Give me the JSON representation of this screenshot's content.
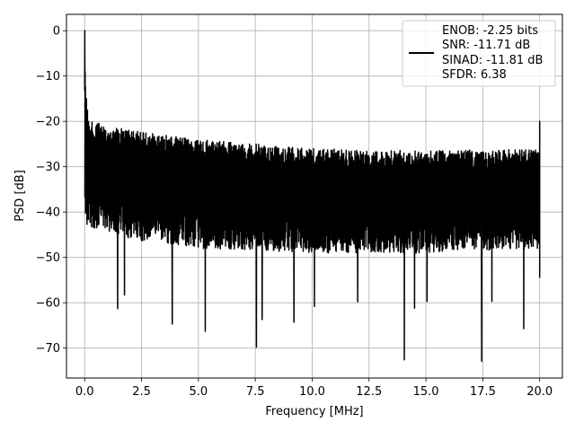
{
  "chart_data": {
    "type": "line",
    "title": "",
    "xlabel": "Frequency [MHz]",
    "ylabel": "PSD [dB]",
    "xlim": [
      -0.8,
      21.0
    ],
    "ylim": [
      -76.6,
      3.6
    ],
    "grid": true,
    "legend_position": "top-right",
    "x_ticks": [
      0.0,
      2.5,
      5.0,
      7.5,
      10.0,
      12.5,
      15.0,
      17.5,
      20.0
    ],
    "x_tick_labels": [
      "0.0",
      "2.5",
      "5.0",
      "7.5",
      "10.0",
      "12.5",
      "15.0",
      "17.5",
      "20.0"
    ],
    "y_ticks": [
      0,
      -10,
      -20,
      -30,
      -40,
      -50,
      -60,
      -70
    ],
    "y_tick_labels": [
      "0",
      "−10",
      "−20",
      "−30",
      "−40",
      "−50",
      "−60",
      "−70"
    ],
    "legend_lines": [
      "ENOB: -2.25 bits",
      "SNR: -11.71 dB",
      "SINAD: -11.81 dB",
      "SFDR: 6.38"
    ],
    "series": [
      {
        "color": "#000000",
        "x_range": [
          0.0,
          20.0
        ],
        "peak": {
          "x": 0.0,
          "y": 0.0
        },
        "end_spur": {
          "x": 20.0,
          "y": -20.0
        },
        "upper_envelope": {
          "x": [
            0.0,
            0.2,
            2.0,
            5.0,
            10.0,
            15.0,
            20.0
          ],
          "y": [
            -10,
            -20,
            -22,
            -24,
            -26,
            -26.5,
            -26
          ]
        },
        "lower_envelope": {
          "x": [
            0.0,
            2.0,
            5.0,
            10.0,
            15.0,
            20.0
          ],
          "y": [
            -45,
            -48,
            -50,
            -51,
            -51,
            -50
          ]
        },
        "deep_notches": [
          {
            "x": 1.45,
            "y": -61.3
          },
          {
            "x": 1.75,
            "y": -58.3
          },
          {
            "x": 3.85,
            "y": -64.7
          },
          {
            "x": 5.3,
            "y": -66.3
          },
          {
            "x": 7.55,
            "y": -69.8
          },
          {
            "x": 7.8,
            "y": -63.7
          },
          {
            "x": 9.2,
            "y": -64.3
          },
          {
            "x": 10.1,
            "y": -60.8
          },
          {
            "x": 12.0,
            "y": -59.8
          },
          {
            "x": 14.05,
            "y": -72.6
          },
          {
            "x": 14.5,
            "y": -61.2
          },
          {
            "x": 15.05,
            "y": -59.7
          },
          {
            "x": 17.45,
            "y": -72.9
          },
          {
            "x": 17.9,
            "y": -59.7
          },
          {
            "x": 19.3,
            "y": -65.7
          }
        ]
      }
    ]
  }
}
